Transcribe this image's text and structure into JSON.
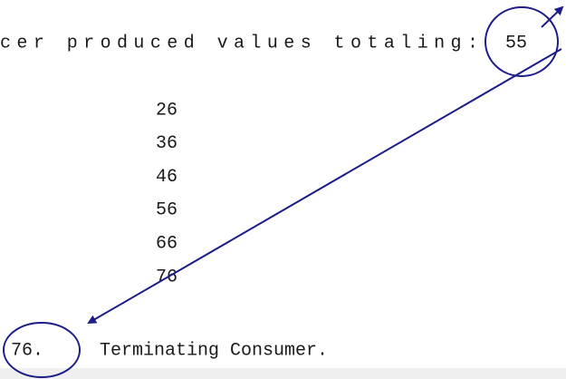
{
  "console": {
    "header": {
      "text": "cer produced values totaling:",
      "value": "55"
    },
    "values": [
      "26",
      "36",
      "46",
      "56",
      "66",
      "76"
    ],
    "footer": {
      "value": "76.",
      "text": "Terminating Consumer."
    }
  }
}
